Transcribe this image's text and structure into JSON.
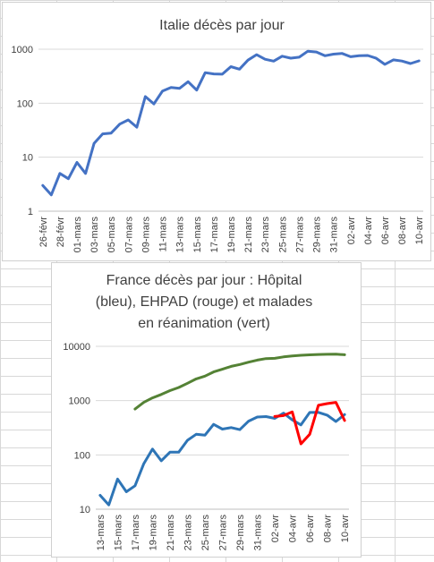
{
  "chart_data": [
    {
      "type": "line",
      "title": "Italie décès par jour",
      "yscale": "log",
      "ylim": [
        1,
        1000
      ],
      "ytick_labels": [
        "1",
        "10",
        "100",
        "1000"
      ],
      "x_tick_labels": [
        "26-févr",
        "28-févr",
        "01-mars",
        "03-mars",
        "05-mars",
        "07-mars",
        "09-mars",
        "11-mars",
        "13-mars",
        "15-mars",
        "17-mars",
        "19-mars",
        "21-mars",
        "23-mars",
        "25-mars",
        "27-mars",
        "29-mars",
        "31-mars",
        "02-avr",
        "04-avr",
        "06-avr",
        "08-avr",
        "10-avr"
      ],
      "grid": true,
      "series": [
        {
          "color": "#4472c4",
          "x": [
            "26-févr",
            "27-févr",
            "28-févr",
            "29-févr",
            "01-mars",
            "02-mars",
            "03-mars",
            "04-mars",
            "05-mars",
            "06-mars",
            "07-mars",
            "08-mars",
            "09-mars",
            "10-mars",
            "11-mars",
            "12-mars",
            "13-mars",
            "14-mars",
            "15-mars",
            "16-mars",
            "17-mars",
            "18-mars",
            "19-mars",
            "20-mars",
            "21-mars",
            "22-mars",
            "23-mars",
            "24-mars",
            "25-mars",
            "26-mars",
            "27-mars",
            "28-mars",
            "29-mars",
            "30-mars",
            "31-mars",
            "01-avr",
            "02-avr",
            "03-avr",
            "04-avr",
            "05-avr",
            "06-avr",
            "07-avr",
            "08-avr",
            "09-avr",
            "10-avr"
          ],
          "values": [
            3,
            2,
            5,
            4,
            8,
            5,
            18,
            27,
            28,
            41,
            49,
            36,
            133,
            97,
            168,
            196,
            189,
            250,
            175,
            368,
            349,
            345,
            475,
            427,
            627,
            793,
            651,
            601,
            743,
            683,
            712,
            919,
            889,
            756,
            812,
            837,
            727,
            760,
            766,
            681,
            525,
            636,
            604,
            542,
            610
          ]
        }
      ]
    },
    {
      "type": "line",
      "title": "France décès par jour : Hôpital (bleu),  EHPAD (rouge) et malades en réanimation (vert)",
      "title_lines": [
        "France décès par jour : Hôpital",
        "(bleu),  EHPAD (rouge) et malades",
        "en réanimation (vert)"
      ],
      "yscale": "log",
      "ylim": [
        10,
        10000
      ],
      "ytick_labels": [
        "10",
        "100",
        "1000",
        "10000"
      ],
      "x_tick_labels": [
        "13-mars",
        "15-mars",
        "17-mars",
        "19-mars",
        "21-mars",
        "23-mars",
        "25-mars",
        "27-mars",
        "29-mars",
        "31-mars",
        "02-avr",
        "04-avr",
        "06-avr",
        "08-avr",
        "10-avr"
      ],
      "grid": true,
      "series": [
        {
          "color": "#2e75b6",
          "x": [
            "13-mars",
            "14-mars",
            "15-mars",
            "16-mars",
            "17-mars",
            "18-mars",
            "19-mars",
            "20-mars",
            "21-mars",
            "22-mars",
            "23-mars",
            "24-mars",
            "25-mars",
            "26-mars",
            "27-mars",
            "28-mars",
            "29-mars",
            "30-mars",
            "31-mars",
            "01-avr",
            "02-avr",
            "03-avr",
            "04-avr",
            "05-avr",
            "06-avr",
            "07-avr",
            "08-avr",
            "09-avr",
            "10-avr"
          ],
          "values": [
            18,
            12,
            36,
            21,
            27,
            69,
            128,
            78,
            112,
            112,
            186,
            240,
            231,
            365,
            299,
            319,
            292,
            418,
            499,
            509,
            471,
            589,
            441,
            357,
            605,
            607,
            541,
            412,
            554
          ]
        },
        {
          "color": "#ff0000",
          "x": [
            "02-avr",
            "03-avr",
            "04-avr",
            "05-avr",
            "06-avr",
            "07-avr",
            "08-avr",
            "09-avr",
            "10-avr"
          ],
          "values": [
            510,
            530,
            620,
            160,
            240,
            820,
            880,
            930,
            430
          ]
        },
        {
          "color": "#548235",
          "x": [
            "17-mars",
            "18-mars",
            "19-mars",
            "20-mars",
            "21-mars",
            "22-mars",
            "23-mars",
            "24-mars",
            "25-mars",
            "26-mars",
            "27-mars",
            "28-mars",
            "29-mars",
            "30-mars",
            "31-mars",
            "01-avr",
            "02-avr",
            "03-avr",
            "04-avr",
            "05-avr",
            "06-avr",
            "07-avr",
            "08-avr",
            "09-avr",
            "10-avr"
          ],
          "values": [
            699,
            931,
            1122,
            1297,
            1525,
            1746,
            2082,
            2516,
            2827,
            3375,
            3787,
            4273,
            4632,
            5107,
            5565,
            5940,
            6017,
            6399,
            6662,
            6838,
            6978,
            7072,
            7131,
            7148,
            7004
          ]
        }
      ]
    }
  ]
}
